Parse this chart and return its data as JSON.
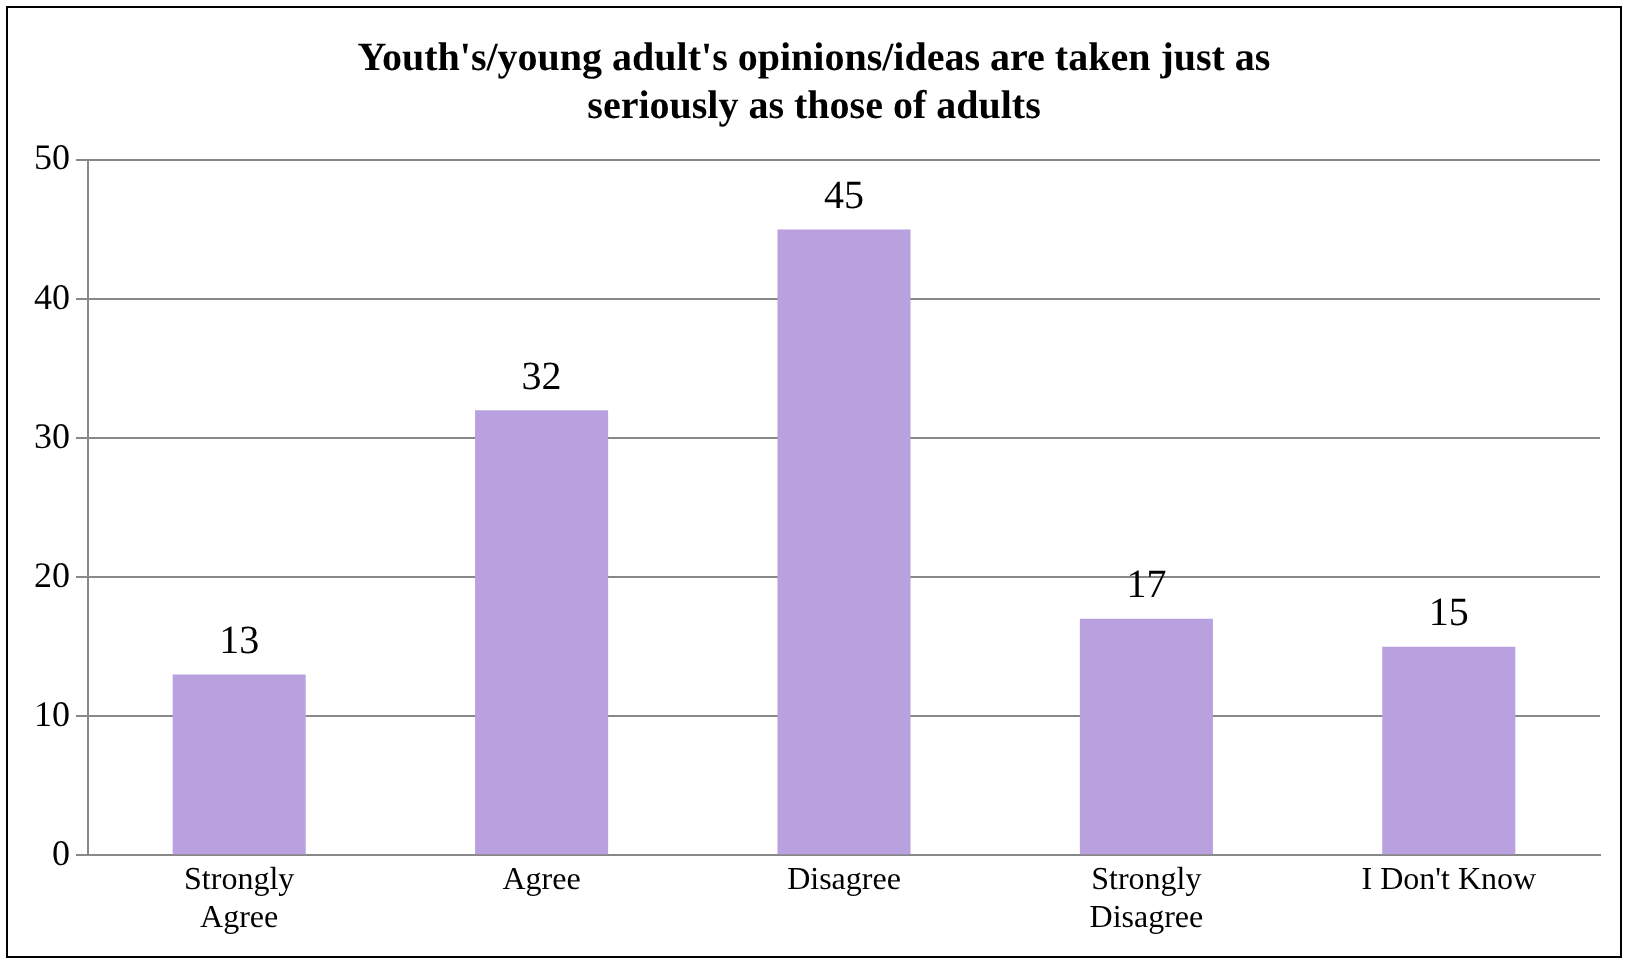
{
  "chart_data": {
    "type": "bar",
    "title": "Youth's/young adult's opinions/ideas are taken just as seriously as those of adults",
    "categories": [
      "Strongly Agree",
      "Agree",
      "Disagree",
      "Strongly Disagree",
      "I Don't Know"
    ],
    "values": [
      13,
      32,
      45,
      17,
      15
    ],
    "color": "#b9a0df",
    "ylim": [
      0,
      50
    ],
    "yticks": [
      0,
      10,
      20,
      30,
      40,
      50
    ],
    "grid": "y",
    "data_labels": true
  }
}
